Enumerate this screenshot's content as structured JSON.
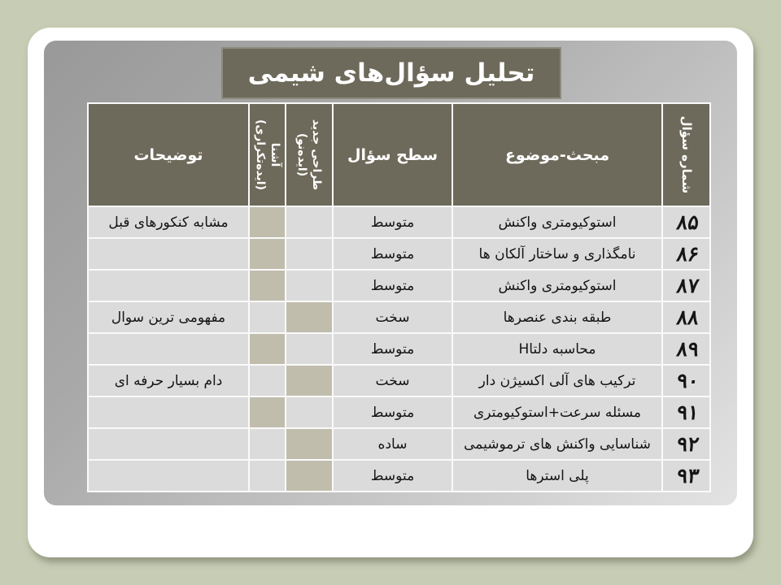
{
  "slide": {
    "title": "تحلیل سؤال‌های شیمی"
  },
  "table": {
    "headers": {
      "number": "شماره سؤال",
      "topic": "مبحث-موضوع",
      "level": "سطح سؤال",
      "new_design_line1": "طراحی جدید",
      "new_design_line2": "(ایده‌نو)",
      "familiar_line1": "آشنا",
      "familiar_line2": "(ایده‌تکراری)",
      "notes": "توضیحات"
    },
    "rows": [
      {
        "number": "۸۵",
        "topic": "استوکیومتری واکنش",
        "level": "متوسط",
        "marked": "familiar",
        "notes": "مشابه کنکورهای قبل"
      },
      {
        "number": "۸۶",
        "topic": "نامگذاری و ساختار آلکان ها",
        "level": "متوسط",
        "marked": "familiar",
        "notes": ""
      },
      {
        "number": "۸۷",
        "topic": "استوکیومتری واکنش",
        "level": "متوسط",
        "marked": "familiar",
        "notes": ""
      },
      {
        "number": "۸۸",
        "topic": "طبقه بندی عنصرها",
        "level": "سخت",
        "marked": "new",
        "notes": "مفهومی ترین سوال"
      },
      {
        "number": "۸۹",
        "topic": "محاسبه دلتاH",
        "level": "متوسط",
        "marked": "familiar",
        "notes": ""
      },
      {
        "number": "۹۰",
        "topic": "ترکیب های آلی اکسیژن دار",
        "level": "سخت",
        "marked": "new",
        "notes": "دام بسیار حرفه ای"
      },
      {
        "number": "۹۱",
        "topic": "مسئله سرعت+استوکیومتری",
        "level": "متوسط",
        "marked": "familiar",
        "notes": ""
      },
      {
        "number": "۹۲",
        "topic": "شناسایی واکنش های ترموشیمی",
        "level": "ساده",
        "marked": "new",
        "notes": ""
      },
      {
        "number": "۹۳",
        "topic": "پلی استرها",
        "level": "متوسط",
        "marked": "new",
        "notes": ""
      }
    ]
  },
  "colors": {
    "page_background": "#c7ccb5",
    "card": "#ffffff",
    "panel_gradient_start": "#999999",
    "panel_gradient_end": "#e3e3e3",
    "header_fill": "#6e6a5b",
    "header_text": "#ffffff",
    "row_fill": "#dbdbdb",
    "mark_fill": "#c1bdad",
    "body_text": "#151515"
  }
}
